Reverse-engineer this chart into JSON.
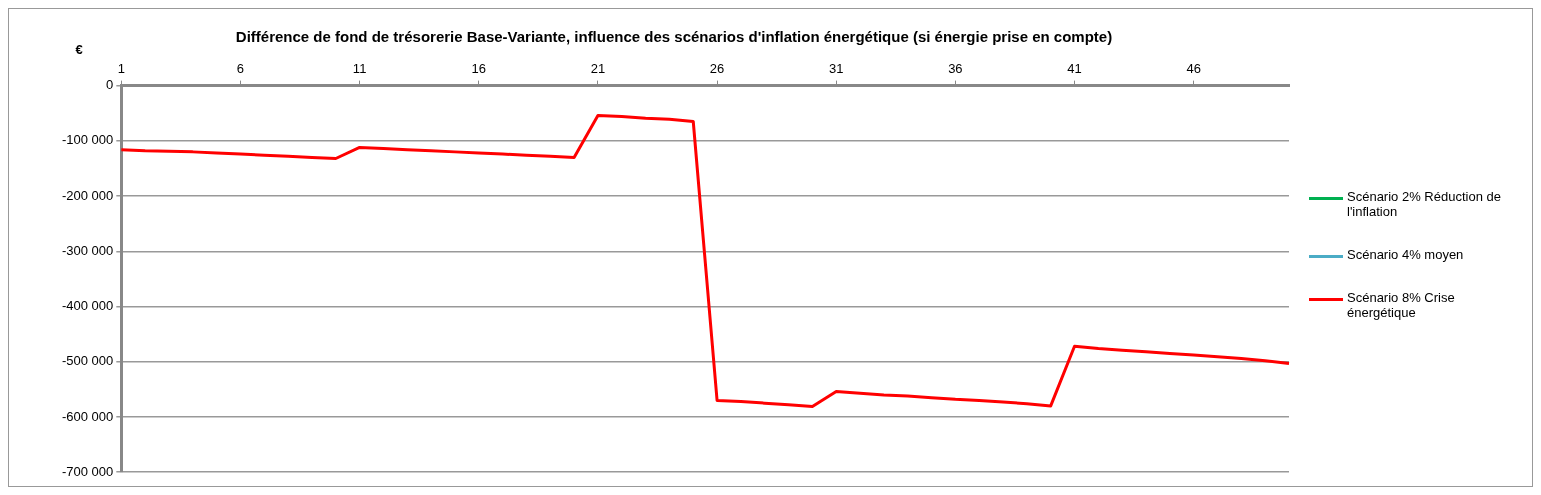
{
  "chart_data": {
    "type": "line",
    "title": "Différence de fond de trésorerie Base-Variante, influence des scénarios d'inflation énergétique (si énergie prise en compte)",
    "ylabel": "€",
    "categories": [
      "1",
      null,
      null,
      null,
      null,
      "6",
      null,
      null,
      null,
      null,
      "11",
      null,
      null,
      null,
      null,
      "16",
      null,
      null,
      null,
      null,
      "21",
      null,
      null,
      null,
      null,
      "26",
      null,
      null,
      null,
      null,
      "31",
      null,
      null,
      null,
      null,
      "36",
      null,
      null,
      null,
      null,
      "41",
      null,
      null,
      null,
      null,
      "46",
      null,
      null,
      null,
      null
    ],
    "series": [
      {
        "name": "Scénario 2% Réduction de l'inflation",
        "color": "#00b050",
        "values": [
          null,
          null,
          null,
          null,
          null,
          null,
          null,
          null,
          null,
          null,
          null,
          null,
          null,
          null,
          null,
          null,
          null,
          null,
          null,
          null,
          null,
          null,
          null,
          null,
          null,
          null,
          null,
          null,
          null,
          null,
          null,
          null,
          null,
          null,
          null,
          null,
          null,
          null,
          null,
          null,
          null,
          null,
          null,
          null,
          null,
          null,
          null,
          null,
          null,
          null
        ]
      },
      {
        "name": "Scénario 4% moyen",
        "color": "#4bacc6",
        "values": [
          null,
          null,
          null,
          null,
          null,
          null,
          null,
          null,
          null,
          null,
          null,
          null,
          null,
          null,
          null,
          null,
          null,
          null,
          null,
          null,
          null,
          null,
          null,
          null,
          null,
          null,
          null,
          null,
          null,
          null,
          null,
          null,
          null,
          null,
          null,
          null,
          null,
          null,
          null,
          null,
          null,
          null,
          null,
          null,
          null,
          null,
          null,
          null,
          null,
          null
        ]
      },
      {
        "name": "Scénario 8% Crise énergétique",
        "color": "#ff0000",
        "values": [
          -116000,
          -118000,
          -119000,
          -120000,
          -122000,
          -124000,
          -126000,
          -128000,
          -130000,
          -132000,
          -112000,
          -114000,
          -116000,
          -118000,
          -120000,
          -122000,
          -124000,
          -126000,
          -128000,
          -130000,
          -54000,
          -56000,
          -59000,
          -61000,
          -65000,
          -570000,
          -572000,
          -575000,
          -578000,
          -581000,
          -554000,
          -557000,
          -560000,
          -562000,
          -565000,
          -568000,
          -570000,
          -573000,
          -576000,
          -580000,
          -472000,
          -476000,
          -479000,
          -482000,
          -485000,
          -488000,
          -491000,
          -494000,
          -498000,
          -503000
        ]
      }
    ],
    "ylim": [
      -700000,
      0
    ],
    "yticks": [
      0,
      {
        "value": -100000,
        "label": "-100 000"
      },
      {
        "value": -200000,
        "label": "-200 000"
      },
      {
        "value": -300000,
        "label": "-300 000"
      },
      {
        "value": -400000,
        "label": "-400 000"
      },
      {
        "value": -500000,
        "label": "-500 000"
      },
      {
        "value": -600000,
        "label": "-600 000"
      },
      {
        "value": -700000,
        "label": "-700 000"
      }
    ],
    "grid": "y",
    "legend": "right",
    "marker": "none",
    "line_style": "solid"
  }
}
